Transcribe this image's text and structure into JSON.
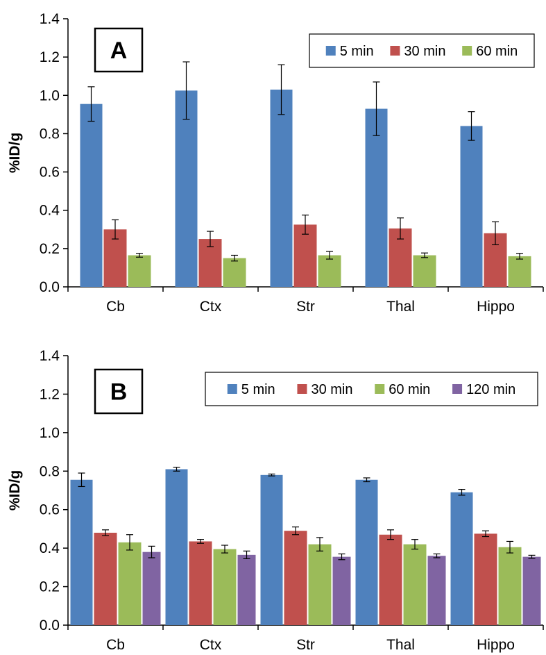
{
  "chart_data": [
    {
      "type": "bar",
      "panel_label": "A",
      "ylabel": "%ID/g",
      "ylim": [
        0,
        1.4
      ],
      "yticks": [
        "0.0",
        "0.2",
        "0.4",
        "0.6",
        "0.8",
        "1.0",
        "1.2",
        "1.4"
      ],
      "categories": [
        "Cb",
        "Ctx",
        "Str",
        "Thal",
        "Hippo"
      ],
      "legend_position": "top-right",
      "series": [
        {
          "name": "5 min",
          "color": "#4f81bd",
          "values": [
            0.955,
            1.025,
            1.03,
            0.93,
            0.84
          ],
          "errors": [
            0.09,
            0.15,
            0.13,
            0.14,
            0.075
          ]
        },
        {
          "name": "30 min",
          "color": "#c0504d",
          "values": [
            0.3,
            0.25,
            0.325,
            0.305,
            0.28
          ],
          "errors": [
            0.05,
            0.04,
            0.05,
            0.055,
            0.06
          ]
        },
        {
          "name": "60 min",
          "color": "#9bbb59",
          "values": [
            0.165,
            0.15,
            0.165,
            0.165,
            0.16
          ],
          "errors": [
            0.01,
            0.015,
            0.02,
            0.012,
            0.015
          ]
        }
      ]
    },
    {
      "type": "bar",
      "panel_label": "B",
      "ylabel": "%ID/g",
      "ylim": [
        0,
        1.4
      ],
      "yticks": [
        "0.0",
        "0.2",
        "0.4",
        "0.6",
        "0.8",
        "1.0",
        "1.2",
        "1.4"
      ],
      "categories": [
        "Cb",
        "Ctx",
        "Str",
        "Thal",
        "Hippo"
      ],
      "legend_position": "top-right",
      "series": [
        {
          "name": "5 min",
          "color": "#4f81bd",
          "values": [
            0.755,
            0.81,
            0.78,
            0.755,
            0.69
          ],
          "errors": [
            0.035,
            0.01,
            0.005,
            0.01,
            0.015
          ]
        },
        {
          "name": "30 min",
          "color": "#c0504d",
          "values": [
            0.48,
            0.435,
            0.49,
            0.47,
            0.475
          ],
          "errors": [
            0.015,
            0.01,
            0.02,
            0.025,
            0.015
          ]
        },
        {
          "name": "60 min",
          "color": "#9bbb59",
          "values": [
            0.43,
            0.395,
            0.42,
            0.42,
            0.405
          ],
          "errors": [
            0.04,
            0.02,
            0.035,
            0.025,
            0.03
          ]
        },
        {
          "name": "120 min",
          "color": "#8064a2",
          "values": [
            0.38,
            0.365,
            0.355,
            0.36,
            0.355
          ],
          "errors": [
            0.03,
            0.02,
            0.015,
            0.01,
            0.008
          ]
        }
      ]
    }
  ]
}
